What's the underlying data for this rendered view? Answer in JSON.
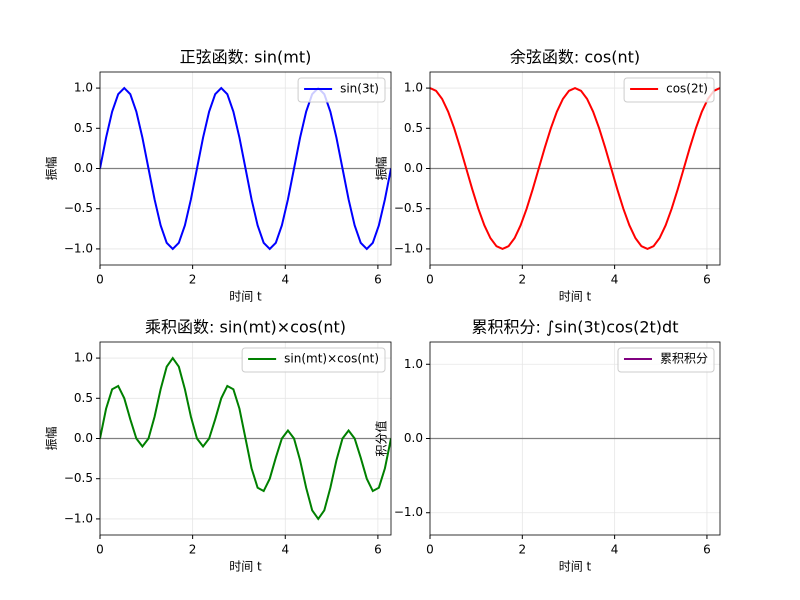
{
  "chart_data": [
    {
      "type": "line",
      "title": "正弦函数: sin(mt)",
      "xlabel": "时间 t",
      "ylabel": "振幅",
      "x": [
        0,
        0.131,
        0.262,
        0.393,
        0.524,
        0.654,
        0.785,
        0.916,
        1.047,
        1.178,
        1.309,
        1.44,
        1.571,
        1.702,
        1.833,
        1.963,
        2.094,
        2.225,
        2.356,
        2.487,
        2.618,
        2.749,
        2.88,
        3.011,
        3.142,
        3.272,
        3.403,
        3.534,
        3.665,
        3.796,
        3.927,
        4.058,
        4.189,
        4.32,
        4.451,
        4.581,
        4.712,
        4.843,
        4.974,
        5.105,
        5.236,
        5.367,
        5.498,
        5.629,
        5.76,
        5.89,
        6.021,
        6.152,
        6.283
      ],
      "series": [
        {
          "name": "sin(3t)",
          "color": "#0000ff",
          "values": [
            0,
            0.383,
            0.707,
            0.924,
            1,
            0.924,
            0.707,
            0.383,
            0,
            -0.383,
            -0.707,
            -0.924,
            -1,
            -0.924,
            -0.707,
            -0.383,
            0,
            0.383,
            0.707,
            0.924,
            1,
            0.924,
            0.707,
            0.383,
            0,
            -0.383,
            -0.707,
            -0.924,
            -1,
            -0.924,
            -0.707,
            -0.383,
            0,
            0.383,
            0.707,
            0.924,
            1,
            0.924,
            0.707,
            0.383,
            0,
            -0.383,
            -0.707,
            -0.924,
            -1,
            -0.924,
            -0.707,
            -0.383,
            0
          ]
        }
      ],
      "xlim": [
        0,
        6.283
      ],
      "ylim": [
        -1.2,
        1.2
      ],
      "xticks": [
        0,
        2,
        4,
        6
      ],
      "yticks": [
        {
          "value": -1,
          "label": "−1.0"
        },
        {
          "value": -0.5,
          "label": "−0.5"
        },
        {
          "value": 0,
          "label": "0.0"
        },
        0.5,
        {
          "value": 1,
          "label": "1.0"
        }
      ],
      "grid": true,
      "hline": 0,
      "legend": "upper-right"
    },
    {
      "type": "line",
      "title": "余弦函数: cos(nt)",
      "xlabel": "时间 t",
      "ylabel": "振幅",
      "x": [
        0,
        0.131,
        0.262,
        0.393,
        0.524,
        0.654,
        0.785,
        0.916,
        1.047,
        1.178,
        1.309,
        1.44,
        1.571,
        1.702,
        1.833,
        1.963,
        2.094,
        2.225,
        2.356,
        2.487,
        2.618,
        2.749,
        2.88,
        3.011,
        3.142,
        3.272,
        3.403,
        3.534,
        3.665,
        3.796,
        3.927,
        4.058,
        4.189,
        4.32,
        4.451,
        4.581,
        4.712,
        4.843,
        4.974,
        5.105,
        5.236,
        5.367,
        5.498,
        5.629,
        5.76,
        5.89,
        6.021,
        6.152,
        6.283
      ],
      "series": [
        {
          "name": "cos(2t)",
          "color": "#ff0000",
          "values": [
            1,
            0.966,
            0.866,
            0.707,
            0.5,
            0.259,
            0,
            -0.259,
            -0.5,
            -0.707,
            -0.866,
            -0.966,
            -1,
            -0.966,
            -0.866,
            -0.707,
            -0.5,
            -0.259,
            0,
            0.259,
            0.5,
            0.707,
            0.866,
            0.966,
            1,
            0.966,
            0.866,
            0.707,
            0.5,
            0.259,
            0,
            -0.259,
            -0.5,
            -0.707,
            -0.866,
            -0.966,
            -1,
            -0.966,
            -0.866,
            -0.707,
            -0.5,
            -0.259,
            0,
            0.259,
            0.5,
            0.707,
            0.866,
            0.966,
            1
          ]
        }
      ],
      "xlim": [
        0,
        6.283
      ],
      "ylim": [
        -1.2,
        1.2
      ],
      "xticks": [
        0,
        2,
        4,
        6
      ],
      "yticks": [
        {
          "value": -1,
          "label": "−1.0"
        },
        {
          "value": -0.5,
          "label": "−0.5"
        },
        {
          "value": 0,
          "label": "0.0"
        },
        0.5,
        {
          "value": 1,
          "label": "1.0"
        }
      ],
      "grid": true,
      "hline": 0,
      "legend": "upper-right"
    },
    {
      "type": "line",
      "title": "乘积函数: sin(mt)×cos(nt)",
      "xlabel": "时间 t",
      "ylabel": "振幅",
      "x": [
        0,
        0.131,
        0.262,
        0.393,
        0.524,
        0.654,
        0.785,
        0.916,
        1.047,
        1.178,
        1.309,
        1.44,
        1.571,
        1.702,
        1.833,
        1.963,
        2.094,
        2.225,
        2.356,
        2.487,
        2.618,
        2.749,
        2.88,
        3.011,
        3.142,
        3.272,
        3.403,
        3.534,
        3.665,
        3.796,
        3.927,
        4.058,
        4.189,
        4.32,
        4.451,
        4.581,
        4.712,
        4.843,
        4.974,
        5.105,
        5.236,
        5.367,
        5.498,
        5.629,
        5.76,
        5.89,
        6.021,
        6.152,
        6.283
      ],
      "series": [
        {
          "name": "sin(mt)×cos(nt)",
          "color": "#008000",
          "values": [
            0,
            0.37,
            0.612,
            0.653,
            0.5,
            0.239,
            0,
            -0.099,
            0,
            0.271,
            0.612,
            0.893,
            1,
            0.893,
            0.612,
            0.271,
            0,
            -0.099,
            0,
            0.239,
            0.5,
            0.653,
            0.612,
            0.37,
            0,
            -0.37,
            -0.612,
            -0.653,
            -0.5,
            -0.239,
            0,
            0.099,
            0,
            -0.271,
            -0.612,
            -0.893,
            -1,
            -0.893,
            -0.612,
            -0.271,
            0,
            0.099,
            0,
            -0.239,
            -0.5,
            -0.653,
            -0.612,
            -0.37,
            0
          ]
        }
      ],
      "xlim": [
        0,
        6.283
      ],
      "ylim": [
        -1.2,
        1.2
      ],
      "xticks": [
        0,
        2,
        4,
        6
      ],
      "yticks": [
        {
          "value": -1,
          "label": "−1.0"
        },
        {
          "value": -0.5,
          "label": "−0.5"
        },
        {
          "value": 0,
          "label": "0.0"
        },
        0.5,
        {
          "value": 1,
          "label": "1.0"
        }
      ],
      "grid": true,
      "hline": 0,
      "legend": "upper-right"
    },
    {
      "type": "line",
      "title": "累积积分: ∫sin(3t)cos(2t)dt",
      "xlabel": "时间 t",
      "ylabel": "积分值",
      "series": [
        {
          "name": "累积积分",
          "color": "#800080"
        }
      ],
      "xlim": [
        0,
        6.283
      ],
      "ylim": [
        -1.3,
        1.3
      ],
      "xticks": [
        0,
        2,
        4,
        6
      ],
      "yticks": [
        {
          "value": -1,
          "label": "−1.0"
        },
        {
          "value": 0,
          "label": "0.0"
        },
        {
          "value": 1,
          "label": "1.0"
        }
      ],
      "grid": true,
      "hline": 0,
      "legend": "upper-right"
    }
  ]
}
